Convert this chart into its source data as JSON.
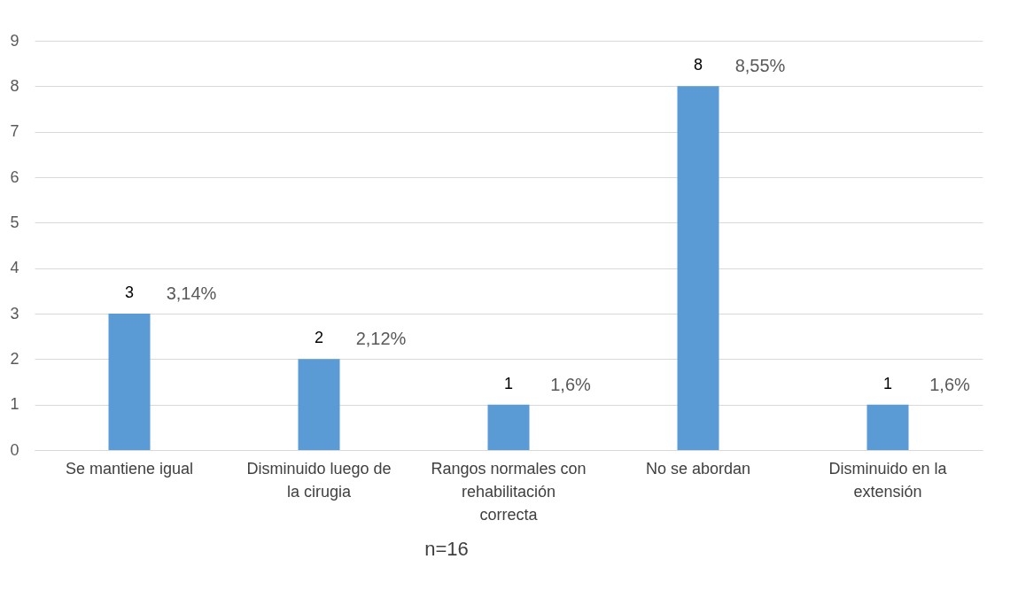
{
  "chart_data": {
    "type": "bar",
    "categories": [
      "Se mantiene igual",
      "Disminuido luego de la cirugia",
      "Rangos normales con rehabilitación correcta",
      "No se abordan",
      "Disminuido en la extensión"
    ],
    "values": [
      3,
      2,
      1,
      8,
      1
    ],
    "color": "#5b9bd5",
    "data_labels": true,
    "ylim": [
      0,
      9
    ],
    "yticks": [
      0,
      1,
      2,
      3,
      4,
      5,
      6,
      7,
      8,
      9
    ],
    "grid": "y",
    "annotations": [
      {
        "text": "3,14%",
        "x": "Se mantiene igual",
        "y": 3
      },
      {
        "text": "2,12%",
        "x": "Disminuido luego de la cirugia",
        "y": 2
      },
      {
        "text": "1,6%",
        "x": "Rangos normales con rehabilitación correcta",
        "y": 1
      },
      {
        "text": "8,55%",
        "x": "No se abordan",
        "y": 8
      },
      {
        "text": "1,6%",
        "x": "Disminuido en la extensión",
        "y": 1
      },
      "n=16"
    ]
  }
}
